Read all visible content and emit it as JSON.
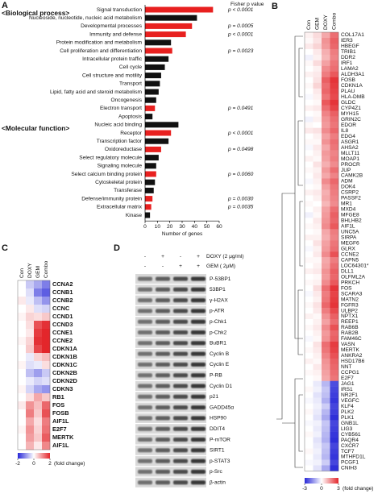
{
  "chart_data": [
    {
      "type": "bar",
      "orientation": "horizontal",
      "panel_label": "A",
      "p_value_title": "Fisher p value",
      "xlabel": "Number of genes",
      "xlim": [
        0,
        60
      ],
      "xticks": [
        0,
        10,
        20,
        30,
        40,
        50,
        60
      ],
      "groups": [
        {
          "name": "<Biological process>",
          "categories": [
            "Signal transduction",
            "Nucleoside, nucleotide, nucleic acid metabolism",
            "Developmental processes",
            "Immunity and defense",
            "Protein modification and metabolism",
            "Cell proliferation and differentiation",
            "Intracellular protein traffic",
            "Cell cycle",
            "Cell structure and motility",
            "Transport",
            "Lipid, fatty acid and steroid metabolism",
            "Oncogenesis",
            "Electron transport",
            "Apoptosis"
          ],
          "values": [
            55,
            42,
            38,
            33,
            21,
            22,
            19,
            16,
            13,
            12,
            11,
            9,
            8,
            6
          ],
          "colors": [
            "#e8201f",
            "#111111",
            "#e8201f",
            "#e8201f",
            "#111111",
            "#e8201f",
            "#111111",
            "#111111",
            "#111111",
            "#111111",
            "#111111",
            "#111111",
            "#e8201f",
            "#111111"
          ],
          "p_values": [
            "p < 0.0001",
            null,
            "p = 0.0005",
            "p < 0.0001",
            null,
            "p = 0.0023",
            null,
            null,
            null,
            null,
            null,
            null,
            "p = 0.0491",
            null
          ]
        },
        {
          "name": "<Molecular function>",
          "categories": [
            "Nucleic acid binding",
            "Receptor",
            "Transcription factor",
            "Oxidoreductase",
            "Select regulatory molecule",
            "Signaling molecule",
            "Select calcium binding protein",
            "Cytoskeletal protein",
            "Transferase",
            "Defense/immunity protein",
            "Extracellular matrix",
            "Kinase"
          ],
          "values": [
            27,
            21,
            19,
            13,
            11,
            9,
            9,
            8,
            7,
            6,
            5,
            4
          ],
          "colors": [
            "#111111",
            "#e8201f",
            "#111111",
            "#e8201f",
            "#111111",
            "#111111",
            "#e8201f",
            "#111111",
            "#111111",
            "#e8201f",
            "#e8201f",
            "#111111"
          ],
          "p_values": [
            null,
            "p < 0.0001",
            null,
            "p = 0.0498",
            null,
            null,
            "p = 0.0060",
            null,
            null,
            "p = 0.0030",
            "p = 0.0035",
            null
          ]
        }
      ]
    },
    {
      "type": "heatmap",
      "panel_label": "B",
      "columns": [
        "Con",
        "GEM",
        "DOXY",
        "Combo"
      ],
      "rows": [
        "COL17A1",
        "IER3",
        "HBEGF",
        "TRIB1",
        "DDR2",
        "IRF1",
        "LAMA2",
        "ALDH3A1",
        "FOSB",
        "CDKN1A",
        "PLAU",
        "HLA-DMB",
        "GLDC",
        "CYP4Z1",
        "MYH15",
        "GRIN2C",
        "EDOR",
        "IL8",
        "EDG4",
        "ASGR1",
        "AHSA2",
        "MLLT11",
        "MOAP1",
        "PROCR",
        "JUP",
        "CAMK2B",
        "ADM",
        "DOK4",
        "CSRP2",
        "PASSF2",
        "MR1",
        "MXD4",
        "MFGE8",
        "BHLHB2",
        "AIF1L",
        "UNC5A",
        "SIRPA",
        "MEGF6",
        "GLRX",
        "CCNE2",
        "CAPN5",
        "LOC64301*",
        "DLL1",
        "OLFML2A",
        "PRKCH",
        "FOS",
        "SCARA3",
        "MATN2",
        "FGFR3",
        "ULBP2",
        "NPTX1",
        "REEP1",
        "RAB6B",
        "RAB2B",
        "FAM46C",
        "VASN",
        "MERTK",
        "ANKRA2",
        "HSD17B6",
        "NNT",
        "CCPG1",
        "E2F7",
        "JAG1",
        "IRS1",
        "NR2F1",
        "VEGFC",
        "KLF4",
        "PLK2",
        "PLK1",
        "GNB1L",
        "LIG3",
        "CYB561",
        "PAQR4",
        "CXCR7",
        "TCF7",
        "MTHFD1L",
        "PCGF1",
        "CNIH3"
      ],
      "values": [
        [
          0.2,
          0.5,
          1.2,
          2.0
        ],
        [
          0.1,
          0.4,
          1.5,
          2.2
        ],
        [
          0.3,
          0.6,
          1.4,
          2.1
        ],
        [
          0,
          0.3,
          1.1,
          1.8
        ],
        [
          -0.2,
          0.2,
          1.0,
          1.7
        ],
        [
          0.1,
          0.5,
          1.3,
          1.9
        ],
        [
          0,
          0.2,
          1.6,
          2.0
        ],
        [
          0.2,
          0.3,
          1.8,
          2.3
        ],
        [
          0,
          0.4,
          2.2,
          2.8
        ],
        [
          0.1,
          0.6,
          2.0,
          2.7
        ],
        [
          0,
          0.3,
          2.1,
          2.6
        ],
        [
          -0.1,
          0.2,
          1.9,
          2.5
        ],
        [
          0,
          0.1,
          2.3,
          2.8
        ],
        [
          0.2,
          0.3,
          2.0,
          2.6
        ],
        [
          0,
          0.1,
          1.7,
          2.2
        ],
        [
          -0.2,
          0.2,
          1.5,
          2.0
        ],
        [
          0.1,
          0,
          1.4,
          1.9
        ],
        [
          0.3,
          0.4,
          1.6,
          2.1
        ],
        [
          0,
          0.2,
          1.3,
          1.8
        ],
        [
          0.1,
          0.1,
          1.5,
          2.0
        ],
        [
          -0.1,
          0.3,
          1.2,
          1.9
        ],
        [
          0,
          0.2,
          1.4,
          1.7
        ],
        [
          0.2,
          0.1,
          1.3,
          1.8
        ],
        [
          0,
          0.4,
          1.1,
          1.6
        ],
        [
          0.1,
          0.2,
          1.4,
          2.0
        ],
        [
          0,
          0.3,
          1.2,
          1.7
        ],
        [
          -0.1,
          0.2,
          1.6,
          2.1
        ],
        [
          0,
          0.1,
          1.3,
          1.9
        ],
        [
          0.2,
          0.3,
          1.1,
          1.8
        ],
        [
          0,
          0.2,
          1.2,
          1.7
        ],
        [
          0.1,
          0,
          1.0,
          1.6
        ],
        [
          0,
          0.2,
          1.3,
          2.0
        ],
        [
          -0.2,
          0.1,
          1.4,
          2.2
        ],
        [
          0,
          0.3,
          1.5,
          2.1
        ],
        [
          0.1,
          0.2,
          1.6,
          2.3
        ],
        [
          0,
          0.1,
          1.2,
          1.8
        ],
        [
          0.2,
          0.2,
          1.1,
          1.7
        ],
        [
          0,
          0.4,
          1.3,
          1.9
        ],
        [
          -0.1,
          0.2,
          1.4,
          2.0
        ],
        [
          0,
          0.3,
          1.6,
          2.4
        ],
        [
          0.1,
          0.1,
          1.2,
          1.8
        ],
        [
          0,
          0.2,
          1.3,
          2.0
        ],
        [
          0.2,
          0.3,
          1.5,
          2.2
        ],
        [
          0,
          0.1,
          1.4,
          2.1
        ],
        [
          0.1,
          0.2,
          1.6,
          2.3
        ],
        [
          0,
          0.5,
          2.0,
          2.8
        ],
        [
          -0.1,
          0.3,
          1.8,
          2.6
        ],
        [
          0,
          0.2,
          1.9,
          2.7
        ],
        [
          0.1,
          0.4,
          2.1,
          2.8
        ],
        [
          0,
          0.3,
          1.8,
          2.5
        ],
        [
          0.2,
          0.1,
          1.5,
          2.2
        ],
        [
          0,
          0.2,
          1.3,
          2.0
        ],
        [
          0.1,
          0.3,
          1.6,
          2.4
        ],
        [
          0,
          0.2,
          1.4,
          2.1
        ],
        [
          -0.1,
          0.1,
          1.5,
          2.2
        ],
        [
          0,
          0.4,
          2.0,
          2.7
        ],
        [
          0.1,
          0.3,
          1.9,
          2.6
        ],
        [
          0,
          0.2,
          1.7,
          2.4
        ],
        [
          0.2,
          0.1,
          1.5,
          2.2
        ],
        [
          0,
          0.3,
          1.4,
          2.1
        ],
        [
          0.1,
          0.2,
          1.3,
          2.0
        ],
        [
          0,
          0.1,
          1.2,
          1.9
        ],
        [
          0,
          -0.3,
          -1.0,
          -2.5
        ],
        [
          0.1,
          -0.2,
          -0.8,
          -2.6
        ],
        [
          0,
          -0.4,
          -0.9,
          -2.7
        ],
        [
          -0.1,
          -0.3,
          -1.1,
          -2.8
        ],
        [
          0,
          -0.2,
          -0.7,
          -2.6
        ],
        [
          0.1,
          -0.3,
          -1.0,
          -2.7
        ],
        [
          0,
          -0.4,
          -1.2,
          -2.9
        ],
        [
          -0.1,
          -0.2,
          -0.8,
          -2.6
        ],
        [
          0,
          -0.3,
          -0.9,
          -2.7
        ],
        [
          0.1,
          -0.2,
          -1.0,
          -2.8
        ],
        [
          0,
          -0.4,
          -1.1,
          -2.9
        ],
        [
          0,
          -0.3,
          -0.8,
          -2.6
        ],
        [
          0.1,
          -0.2,
          -0.9,
          -2.7
        ],
        [
          0,
          -0.3,
          -1.0,
          -2.8
        ],
        [
          -0.1,
          -0.2,
          -0.7,
          -2.6
        ],
        [
          0,
          -0.4,
          -1.2,
          -2.9
        ]
      ],
      "zlim": [
        -3,
        3
      ],
      "colorbar_ticks": [
        -3,
        0,
        3
      ],
      "colorbar_label": "(fold change)",
      "colors": {
        "low": "#2828d8",
        "mid": "#ffffff",
        "high": "#e3262b"
      }
    },
    {
      "type": "heatmap",
      "panel_label": "C",
      "columns": [
        "Con",
        "DOXY",
        "GEM",
        "Combo"
      ],
      "rows": [
        "CCNA2",
        "CCNB1",
        "CCNB2",
        "CCNC",
        "CCND1",
        "CCND3",
        "CCNE1",
        "CCNE2",
        "CDKN1A",
        "CDKN1B",
        "CDKN1C",
        "CDKN2B",
        "CDKN2D",
        "CDKN3",
        "RB1",
        "FOS",
        "FOSB",
        "AIF1L",
        "E2F7",
        "MERTK",
        "AIF1L"
      ],
      "values": [
        [
          0,
          -0.5,
          -0.8,
          -1.2
        ],
        [
          0,
          -0.3,
          -1.2,
          -1.5
        ],
        [
          0.2,
          -0.2,
          -0.6,
          -1.0
        ],
        [
          0,
          0.2,
          -0.3,
          -0.4
        ],
        [
          0.1,
          0.4,
          0.3,
          0.5
        ],
        [
          0,
          0.3,
          1.6,
          1.9
        ],
        [
          0,
          0.2,
          1.8,
          2.0
        ],
        [
          0.1,
          0.4,
          1.9,
          2.0
        ],
        [
          0,
          0.5,
          1.7,
          2.0
        ],
        [
          0,
          -0.2,
          0.4,
          0.6
        ],
        [
          0.1,
          -0.3,
          -0.2,
          0.3
        ],
        [
          0,
          -0.6,
          -0.9,
          -0.5
        ],
        [
          0,
          -0.2,
          -0.4,
          -0.3
        ],
        [
          0.1,
          -0.4,
          -0.8,
          -1.0
        ],
        [
          0,
          0.3,
          0.8,
          0.5
        ],
        [
          0.2,
          1.0,
          0.6,
          1.4
        ],
        [
          0,
          1.2,
          0.5,
          1.6
        ],
        [
          0,
          0.8,
          0.3,
          1.2
        ],
        [
          0.1,
          1.0,
          0.4,
          1.3
        ],
        [
          0,
          0.9,
          0.5,
          1.5
        ],
        [
          0,
          0.7,
          0.2,
          1.1
        ]
      ],
      "zlim": [
        -2,
        2
      ],
      "colorbar_ticks": [
        -2,
        0,
        2
      ],
      "colorbar_label": "(fold change)",
      "colors": {
        "low": "#2828d8",
        "mid": "#ffffff",
        "high": "#e3262b"
      }
    }
  ],
  "blot_panel": {
    "panel_label": "D",
    "treatments": [
      {
        "label": "DOXY (2 μg/ml)",
        "signs": [
          "-",
          "+",
          "-",
          "+"
        ]
      },
      {
        "label": "GEM ( 2μM)",
        "signs": [
          "-",
          "-",
          "+",
          "+"
        ]
      }
    ],
    "proteins": [
      "P-53BP1",
      "53BP1",
      "γ-H2AX",
      "p-ATR",
      "p-Chk1",
      "p-Chk2",
      "BuBR1",
      "Cyclin B",
      "Cyclin E",
      "P-RB",
      "Cyclin D1",
      "p21",
      "GADD45α",
      "HSP90",
      "DDIT4",
      "P-mTOR",
      "SIRT1",
      "p-STAT3",
      "p-Src",
      "β-actin"
    ]
  }
}
